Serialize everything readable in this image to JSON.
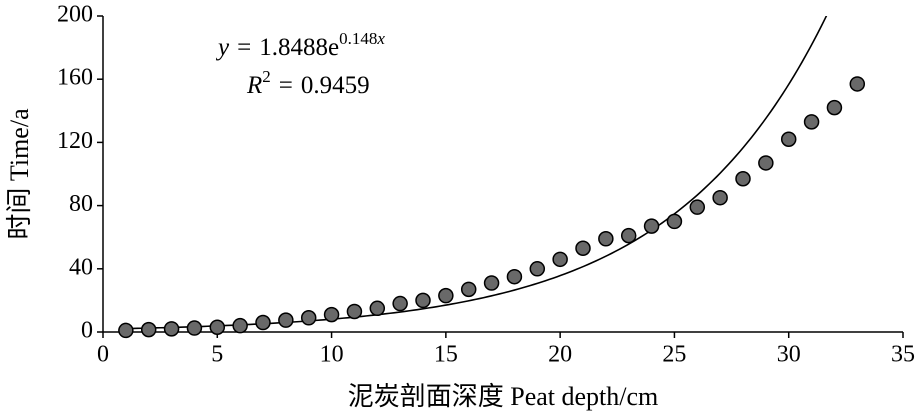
{
  "chart_data": {
    "type": "scatter",
    "x_label": "泥炭剖面深度 Peat depth/cm",
    "y_label": "时间 Time/a",
    "x": [
      1,
      2,
      3,
      4,
      5,
      6,
      7,
      8,
      9,
      10,
      11,
      12,
      13,
      14,
      15,
      16,
      17,
      18,
      19,
      20,
      21,
      22,
      23,
      24,
      25,
      26,
      27,
      28,
      29,
      30,
      31,
      32,
      33
    ],
    "values": [
      1,
      1.5,
      2,
      2.5,
      3,
      4,
      6,
      7.5,
      9,
      11,
      13,
      15,
      18,
      20,
      23,
      27,
      31,
      35,
      40,
      46,
      53,
      59,
      61,
      67,
      70,
      79,
      85,
      97,
      107,
      122,
      133,
      142,
      157
    ],
    "color": "#696969",
    "xlim": [
      0,
      35
    ],
    "xticks": [
      0,
      5,
      10,
      15,
      20,
      25,
      30,
      35
    ],
    "ylim": [
      0,
      200
    ],
    "yticks": [
      0,
      40,
      80,
      120,
      160,
      200
    ],
    "grid": false,
    "fit": {
      "lhs": "y",
      "equals": "=",
      "a": 1.8488,
      "base": "e",
      "b": 0.148,
      "var": "x",
      "r2_symbol": "R",
      "r2_power": "2",
      "r2": 0.9459
    }
  }
}
